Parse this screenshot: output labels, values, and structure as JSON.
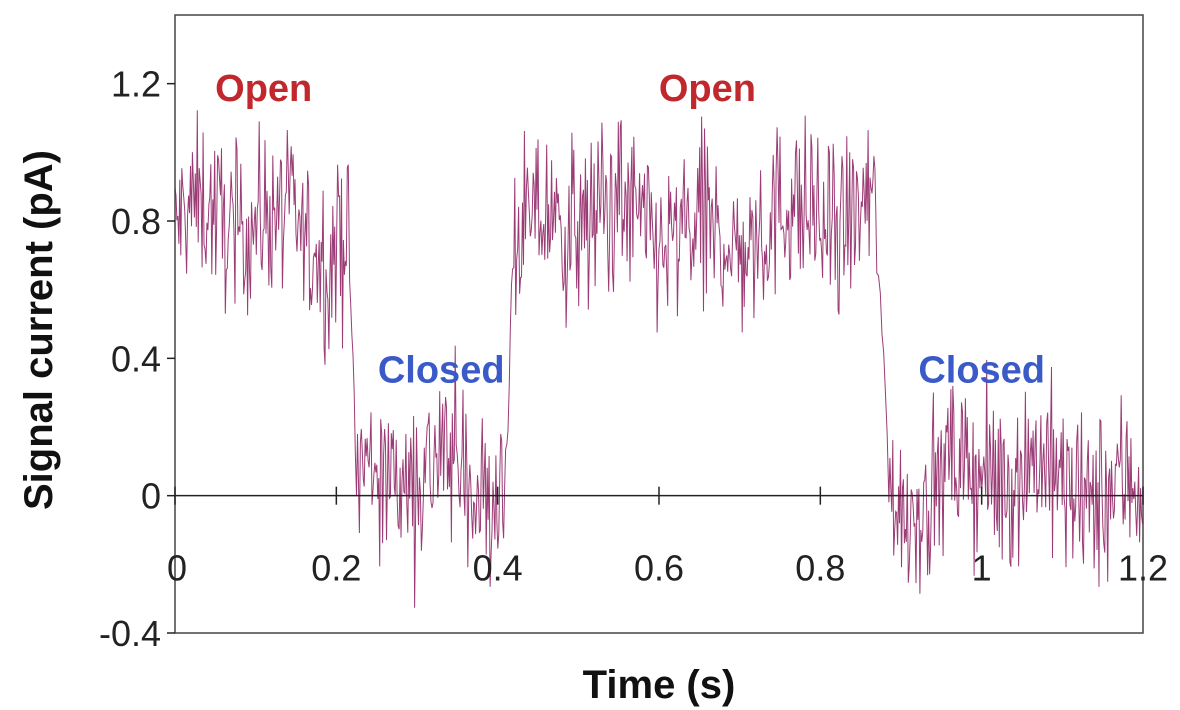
{
  "chart_data": {
    "type": "line",
    "xlabel": "Time (s)",
    "ylabel": "Signal current (pA)",
    "xlim": [
      0,
      1.2
    ],
    "ylim": [
      -0.4,
      1.4
    ],
    "x_ticks": [
      "0",
      "0.2",
      "0.4",
      "0.6",
      "0.8",
      "1",
      "1.2"
    ],
    "y_ticks": [
      "-0.4",
      "0",
      "0.4",
      "0.8",
      "1.2"
    ],
    "line_color": "#8b1a5e",
    "label_colors": {
      "open": "#c0282d",
      "closed": "#3a5bc7"
    },
    "segments": [
      {
        "state": "Open",
        "x_start": 0.0,
        "x_end": 0.215,
        "level": 0.78,
        "noise": 0.28
      },
      {
        "state": "Closed",
        "x_start": 0.225,
        "x_end": 0.41,
        "level": 0.04,
        "noise": 0.3
      },
      {
        "state": "Open",
        "x_start": 0.42,
        "x_end": 0.87,
        "level": 0.78,
        "noise": 0.3
      },
      {
        "state": "Closed",
        "x_start": 0.885,
        "x_end": 1.2,
        "level": 0.04,
        "noise": 0.3
      }
    ],
    "annotations": [
      {
        "text": "Open",
        "x": 0.11,
        "y": 1.15,
        "state": "open"
      },
      {
        "text": "Open",
        "x": 0.66,
        "y": 1.15,
        "state": "open"
      },
      {
        "text": "Closed",
        "x": 0.33,
        "y": 0.33,
        "state": "closed"
      },
      {
        "text": "Closed",
        "x": 1.0,
        "y": 0.33,
        "state": "closed"
      }
    ]
  }
}
